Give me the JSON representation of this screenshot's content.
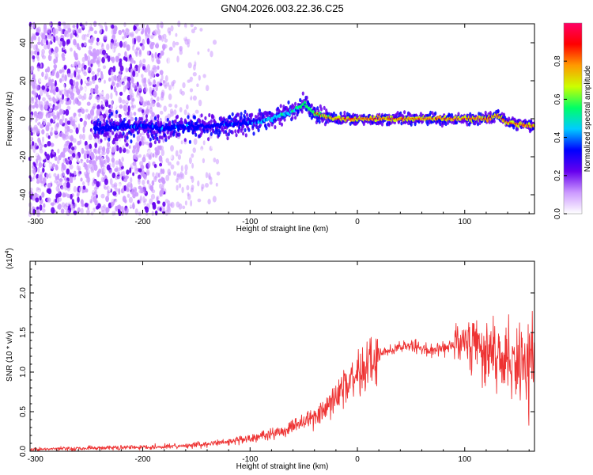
{
  "title": "GN04.2026.003.22.36.C25",
  "chart_data": [
    {
      "type": "heatmap",
      "name": "spectrogram",
      "xlabel": "Height of straight line (km)",
      "ylabel": "Frequency (Hz)",
      "xlim": [
        -305,
        165
      ],
      "ylim": [
        -50,
        50
      ],
      "x_ticks": [
        -300,
        -200,
        -100,
        0,
        100
      ],
      "y_ticks": [
        -40,
        -20,
        0,
        20,
        40
      ],
      "colorbar": {
        "label": "Normalized spectral amplitude",
        "range": [
          0,
          1
        ],
        "ticks": [
          0.0,
          0.2,
          0.4,
          0.6,
          0.8
        ],
        "tick_labels": [
          "0.0",
          "0.2",
          "0.4",
          "0.6",
          "0.8"
        ],
        "colors": [
          "#ffffff",
          "#cc99ff",
          "#6600ee",
          "#0000ff",
          "#00ccff",
          "#00ff66",
          "#ccff00",
          "#ff9900",
          "#ff0000",
          "#ff0066"
        ]
      },
      "ridge": {
        "x": [
          -240,
          -200,
          -180,
          -150,
          -120,
          -100,
          -80,
          -60,
          -50,
          -40,
          -30,
          -20,
          0,
          20,
          40,
          60,
          80,
          100,
          120,
          130,
          140,
          165
        ],
        "freq": [
          -5,
          -4,
          -5,
          -4,
          -3,
          -2,
          0,
          4,
          8,
          3,
          1,
          0,
          0,
          0,
          0,
          0,
          0,
          0,
          0,
          2,
          -2,
          -4
        ]
      }
    },
    {
      "type": "line",
      "name": "snr",
      "xlabel": "Height of straight line (km)",
      "ylabel": "SNR (10 * v/v)",
      "y_multiplier": "(x10",
      "y_multiplier_exp": "4",
      "y_multiplier_close": ")",
      "xlim": [
        -305,
        165
      ],
      "ylim": [
        0,
        2.4
      ],
      "x_ticks": [
        -300,
        -200,
        -100,
        0,
        100
      ],
      "y_ticks": [
        0.0,
        0.5,
        1.0,
        1.5,
        2.0
      ],
      "y_tick_labels": [
        "0.0",
        "0.5",
        "1.0",
        "1.5",
        "2.0"
      ],
      "line_color": "#ee3333",
      "series": [
        {
          "x": [
            -305,
            -280,
            -250,
            -220,
            -200,
            -180,
            -160,
            -140,
            -120,
            -100,
            -80,
            -60,
            -40,
            -30,
            -20,
            -10,
            0,
            10,
            20,
            30,
            40,
            50,
            60,
            70,
            80,
            90,
            100,
            110,
            120,
            130,
            140,
            150,
            165
          ],
          "values": [
            0.02,
            0.03,
            0.04,
            0.05,
            0.05,
            0.06,
            0.07,
            0.09,
            0.12,
            0.16,
            0.22,
            0.3,
            0.45,
            0.55,
            0.7,
            0.85,
            1.0,
            1.1,
            1.2,
            1.28,
            1.32,
            1.33,
            1.3,
            1.28,
            1.3,
            1.35,
            1.4,
            1.4,
            1.3,
            1.25,
            1.15,
            1.05,
            1.1
          ]
        }
      ]
    }
  ]
}
